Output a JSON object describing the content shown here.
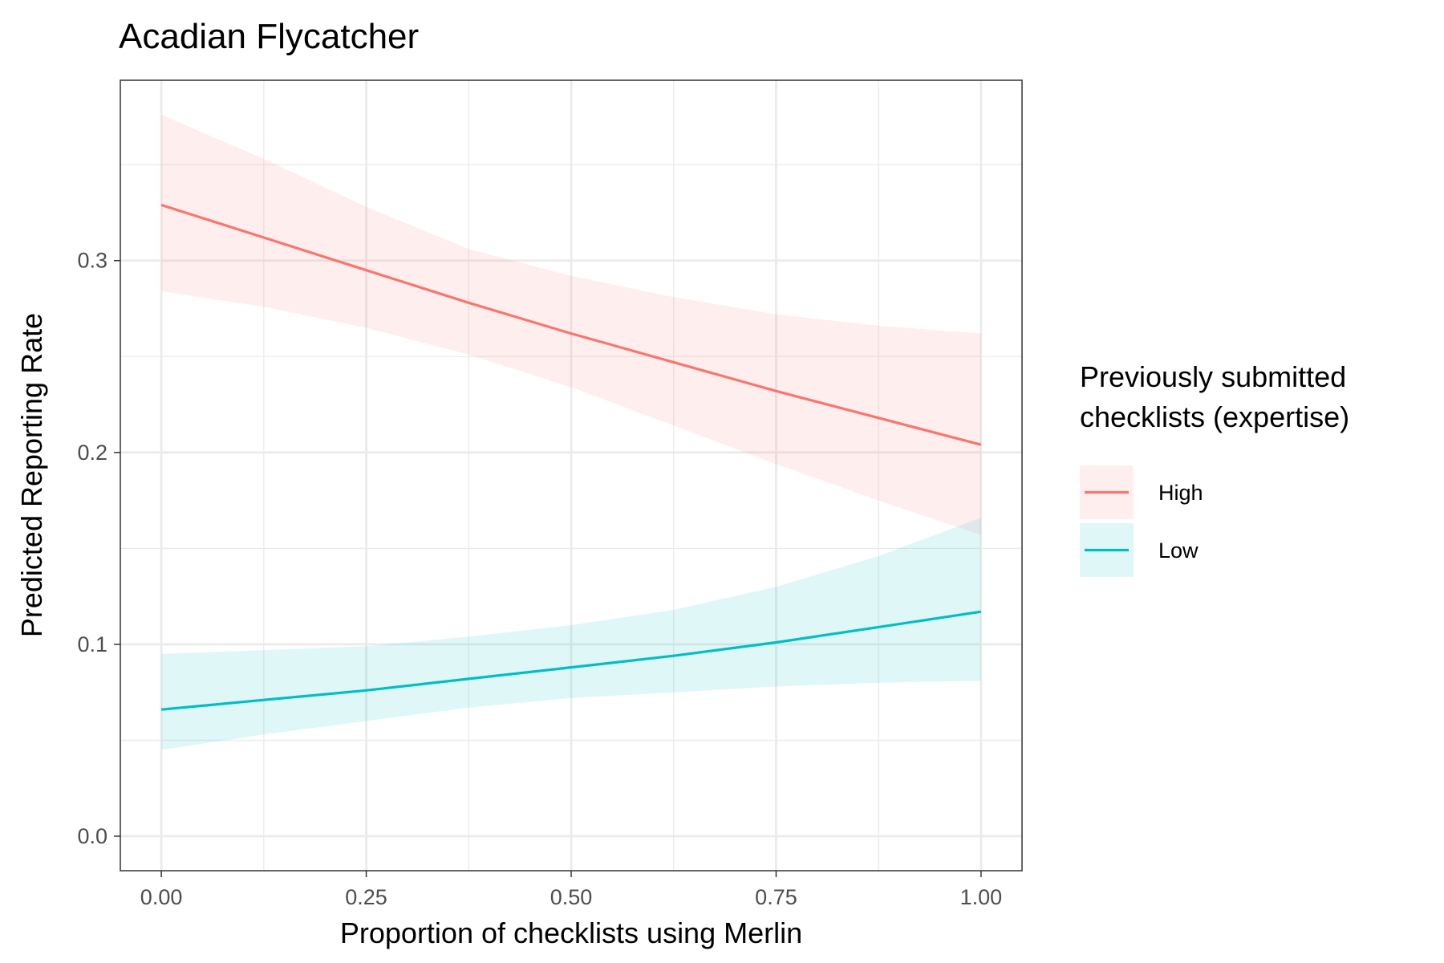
{
  "chart_data": {
    "type": "line",
    "title": "Acadian Flycatcher",
    "xlabel": "Proportion of checklists using Merlin",
    "ylabel": "Predicted Reporting Rate",
    "xlim": [
      -0.05,
      1.05
    ],
    "ylim": [
      -0.018,
      0.394
    ],
    "x_ticks": [
      0.0,
      0.25,
      0.5,
      0.75,
      1.0
    ],
    "x_tick_labels": [
      "0.00",
      "0.25",
      "0.50",
      "0.75",
      "1.00"
    ],
    "y_ticks": [
      0.0,
      0.1,
      0.2,
      0.3
    ],
    "y_tick_labels": [
      "0.0",
      "0.1",
      "0.2",
      "0.3"
    ],
    "grid": true,
    "legend": {
      "title_lines": [
        "Previously submitted",
        "checklists (expertise)"
      ],
      "placement": "right"
    },
    "x": [
      0.0,
      0.125,
      0.25,
      0.375,
      0.5,
      0.625,
      0.75,
      0.875,
      1.0
    ],
    "series": [
      {
        "name": "High",
        "color": "#F8766D",
        "ribbon_color": "#F8766D",
        "values": [
          0.329,
          0.312,
          0.295,
          0.278,
          0.262,
          0.247,
          0.232,
          0.218,
          0.204
        ],
        "lower": [
          0.284,
          0.276,
          0.265,
          0.251,
          0.234,
          0.214,
          0.194,
          0.175,
          0.157
        ],
        "upper": [
          0.376,
          0.353,
          0.328,
          0.306,
          0.292,
          0.281,
          0.272,
          0.266,
          0.262
        ]
      },
      {
        "name": "Low",
        "color": "#00BFC4",
        "ribbon_color": "#00BFC4",
        "values": [
          0.066,
          0.071,
          0.076,
          0.082,
          0.088,
          0.094,
          0.101,
          0.109,
          0.117
        ],
        "lower": [
          0.045,
          0.053,
          0.06,
          0.067,
          0.072,
          0.075,
          0.078,
          0.08,
          0.081
        ],
        "upper": [
          0.095,
          0.097,
          0.099,
          0.104,
          0.11,
          0.118,
          0.13,
          0.146,
          0.166
        ]
      }
    ]
  }
}
